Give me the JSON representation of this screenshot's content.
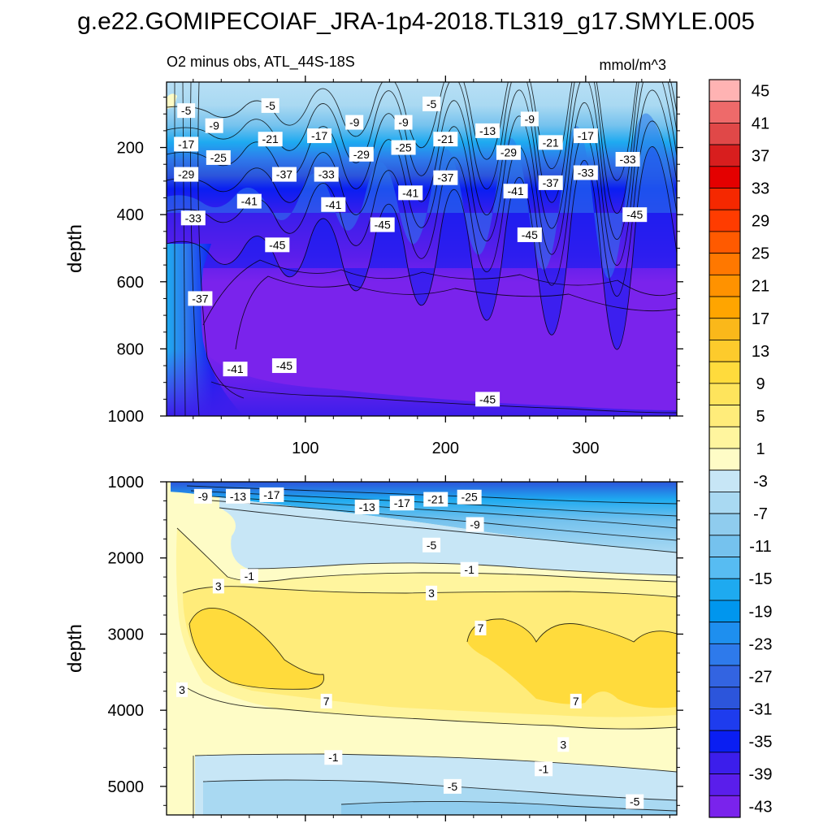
{
  "figure_title": "g.e22.GOMIPECOIAF_JRA-1p4-2018.TL319_g17.SMYLE.005",
  "chart_data": [
    {
      "type": "heatmap",
      "panel": "upper",
      "title_left": "O2 minus obs, ATL_44S-18S",
      "title_right": "mmol/m^3",
      "xlabel": "",
      "ylabel": "depth",
      "xlim": [
        1,
        365
      ],
      "ylim": [
        1000,
        5
      ],
      "x_ticks": [
        100,
        200,
        300
      ],
      "y_ticks": [
        200,
        400,
        600,
        800,
        1000
      ],
      "contour_labels": [
        {
          "text": "-5",
          "x": 15,
          "y": 90
        },
        {
          "text": "-5",
          "x": 75,
          "y": 75
        },
        {
          "text": "-5",
          "x": 190,
          "y": 70
        },
        {
          "text": "-9",
          "x": 35,
          "y": 135
        },
        {
          "text": "-9",
          "x": 135,
          "y": 125
        },
        {
          "text": "-9",
          "x": 170,
          "y": 125
        },
        {
          "text": "-9",
          "x": 260,
          "y": 115
        },
        {
          "text": "-13",
          "x": 230,
          "y": 150
        },
        {
          "text": "-17",
          "x": 15,
          "y": 190
        },
        {
          "text": "-17",
          "x": 110,
          "y": 165
        },
        {
          "text": "-17",
          "x": 300,
          "y": 165
        },
        {
          "text": "-21",
          "x": 75,
          "y": 175
        },
        {
          "text": "-21",
          "x": 200,
          "y": 175
        },
        {
          "text": "-21",
          "x": 275,
          "y": 185
        },
        {
          "text": "-25",
          "x": 38,
          "y": 230
        },
        {
          "text": "-25",
          "x": 170,
          "y": 200
        },
        {
          "text": "-29",
          "x": 15,
          "y": 280
        },
        {
          "text": "-29",
          "x": 140,
          "y": 220
        },
        {
          "text": "-29",
          "x": 245,
          "y": 215
        },
        {
          "text": "-33",
          "x": 115,
          "y": 280
        },
        {
          "text": "-33",
          "x": 300,
          "y": 275
        },
        {
          "text": "-33",
          "x": 330,
          "y": 235
        },
        {
          "text": "-33",
          "x": 20,
          "y": 410
        },
        {
          "text": "-37",
          "x": 85,
          "y": 280
        },
        {
          "text": "-37",
          "x": 200,
          "y": 290
        },
        {
          "text": "-37",
          "x": 275,
          "y": 305
        },
        {
          "text": "-37",
          "x": 25,
          "y": 650
        },
        {
          "text": "-41",
          "x": 60,
          "y": 360
        },
        {
          "text": "-41",
          "x": 120,
          "y": 370
        },
        {
          "text": "-41",
          "x": 175,
          "y": 335
        },
        {
          "text": "-41",
          "x": 250,
          "y": 330
        },
        {
          "text": "-41",
          "x": 50,
          "y": 860
        },
        {
          "text": "-45",
          "x": 80,
          "y": 490
        },
        {
          "text": "-45",
          "x": 155,
          "y": 430
        },
        {
          "text": "-45",
          "x": 260,
          "y": 460
        },
        {
          "text": "-45",
          "x": 335,
          "y": 400
        },
        {
          "text": "-45",
          "x": 85,
          "y": 850
        },
        {
          "text": "-45",
          "x": 230,
          "y": 950
        }
      ]
    },
    {
      "type": "heatmap",
      "panel": "lower",
      "xlabel": "",
      "ylabel": "depth",
      "xlim": [
        1,
        365
      ],
      "ylim": [
        5375,
        1000
      ],
      "x_ticks": [
        100,
        200,
        300
      ],
      "y_ticks": [
        1000,
        2000,
        3000,
        4000,
        5000
      ],
      "contour_labels": [
        {
          "text": "-9",
          "x": 27,
          "y": 1190
        },
        {
          "text": "-13",
          "x": 52,
          "y": 1190
        },
        {
          "text": "-17",
          "x": 76,
          "y": 1170
        },
        {
          "text": "-13",
          "x": 144,
          "y": 1330
        },
        {
          "text": "-17",
          "x": 169,
          "y": 1280
        },
        {
          "text": "-21",
          "x": 193,
          "y": 1230
        },
        {
          "text": "-25",
          "x": 217,
          "y": 1200
        },
        {
          "text": "-9",
          "x": 221,
          "y": 1560
        },
        {
          "text": "-5",
          "x": 190,
          "y": 1830
        },
        {
          "text": "-1",
          "x": 60,
          "y": 2240
        },
        {
          "text": "-1",
          "x": 217,
          "y": 2150
        },
        {
          "text": "3",
          "x": 38,
          "y": 2370
        },
        {
          "text": "3",
          "x": 190,
          "y": 2460
        },
        {
          "text": "3",
          "x": 12,
          "y": 3730
        },
        {
          "text": "3",
          "x": 284,
          "y": 4450
        },
        {
          "text": "7",
          "x": 225,
          "y": 2920
        },
        {
          "text": "7",
          "x": 115,
          "y": 3880
        },
        {
          "text": "7",
          "x": 293,
          "y": 3880
        },
        {
          "text": "-1",
          "x": 120,
          "y": 4620
        },
        {
          "text": "-1",
          "x": 270,
          "y": 4770
        },
        {
          "text": "-5",
          "x": 205,
          "y": 5000
        },
        {
          "text": "-5",
          "x": 335,
          "y": 5200
        }
      ]
    }
  ],
  "colorbar": {
    "labels": [
      "45",
      "41",
      "37",
      "33",
      "29",
      "25",
      "21",
      "17",
      "13",
      "9",
      "5",
      "1",
      "-3",
      "-7",
      "-11",
      "-15",
      "-19",
      "-23",
      "-27",
      "-31",
      "-35",
      "-39",
      "-43"
    ],
    "colors": [
      "#FFB3B3",
      "#EE6A6A",
      "#E04848",
      "#D81E1E",
      "#E40000",
      "#F52800",
      "#FF3C00",
      "#FF5A00",
      "#FF7800",
      "#FF9200",
      "#FFA500",
      "#FAB81A",
      "#FDCB2C",
      "#FFDB3C",
      "#FEE45C",
      "#FFEC7A",
      "#FFF59E",
      "#FEFCC6",
      "#C7E6F6",
      "#A9D9F2",
      "#8FCCEE",
      "#75C2EE",
      "#57BCF2",
      "#1EAAF0",
      "#0096EE",
      "#1E8FEF",
      "#2E7AEB",
      "#3364E1",
      "#2C55DB",
      "#1E3CEE",
      "#0A1EF2",
      "#3C1EEB",
      "#5A1EEB",
      "#7A23EC"
    ]
  }
}
